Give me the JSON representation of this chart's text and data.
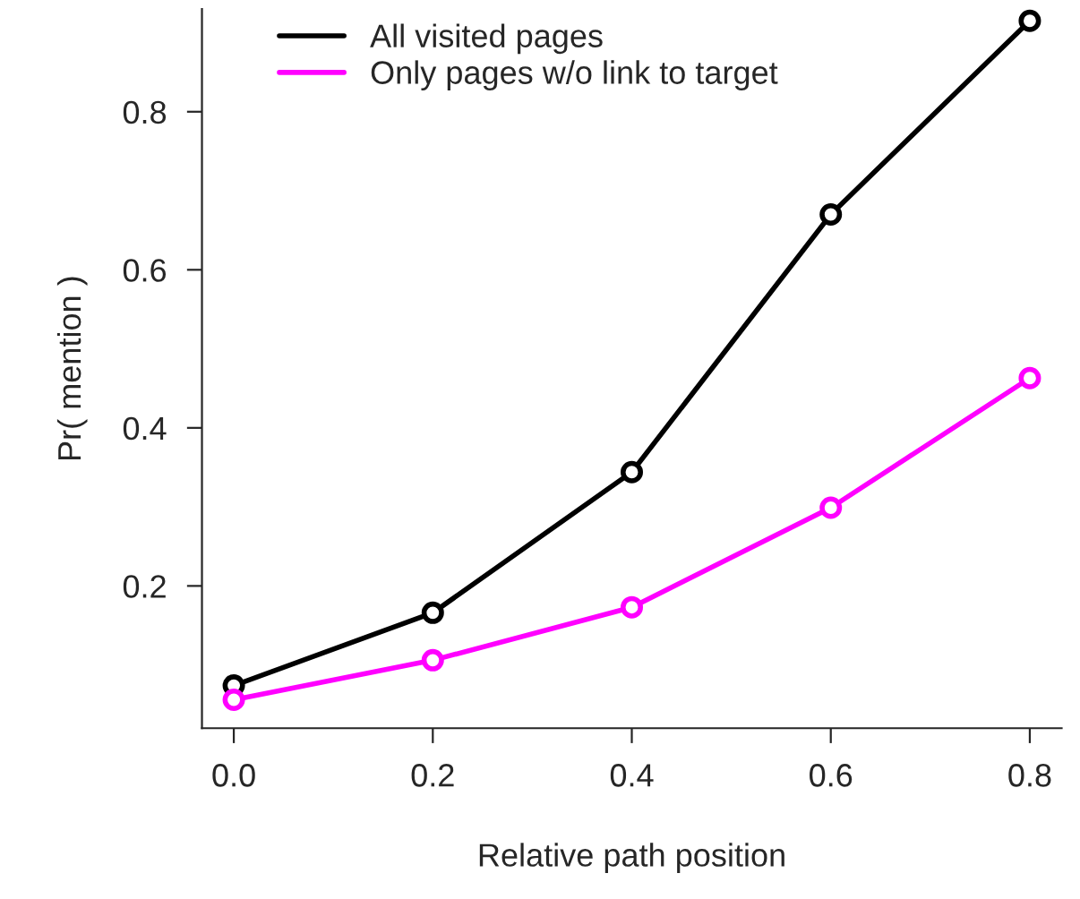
{
  "chart_data": {
    "type": "line",
    "xlabel": "Relative path position",
    "ylabel": "Pr( mention )",
    "x": [
      0.0,
      0.2,
      0.4,
      0.6,
      0.8
    ],
    "series": [
      {
        "name": "All visited pages",
        "color": "#000000",
        "values": [
          0.074,
          0.166,
          0.344,
          0.67,
          0.915
        ]
      },
      {
        "name": "Only pages w/o link to target",
        "color": "#ff00ff",
        "values": [
          0.056,
          0.106,
          0.173,
          0.299,
          0.463
        ]
      }
    ],
    "xlim": [
      -0.032,
      0.832
    ],
    "ylim": [
      0.02,
      0.93
    ],
    "xticks": [
      {
        "value": 0.0,
        "label": "0.0"
      },
      0.2,
      0.4,
      0.6,
      0.8
    ],
    "yticks": [
      0.2,
      0.4,
      0.6,
      0.8
    ],
    "marker": "circle",
    "line_style": "solid",
    "grid": false,
    "legend": "top"
  }
}
